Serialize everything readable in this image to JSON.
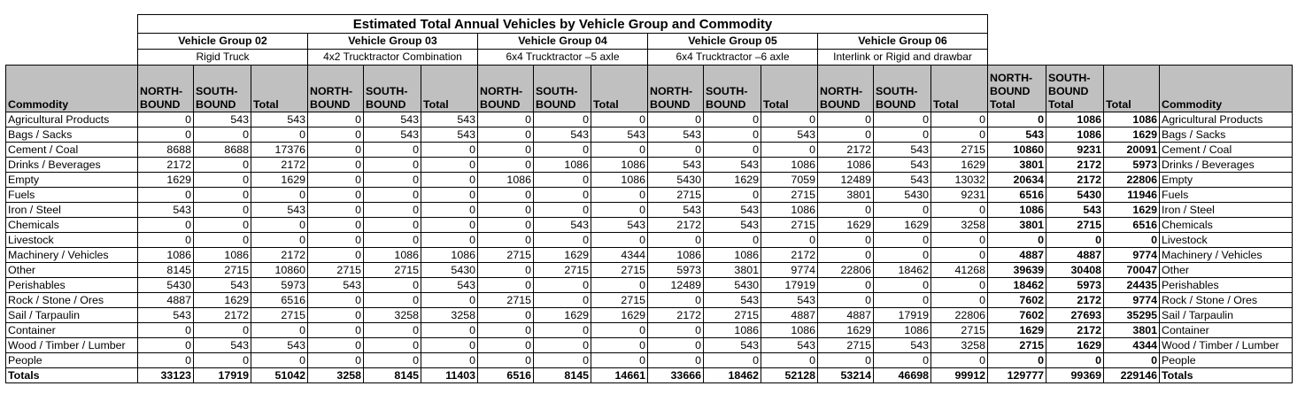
{
  "title": "Estimated Total Annual Vehicles by Vehicle Group and Commodity",
  "vehicle_groups": [
    {
      "name": "Vehicle Group 02",
      "type": "Rigid Truck"
    },
    {
      "name": "Vehicle Group 03",
      "type": "4x2 Trucktractor Combination"
    },
    {
      "name": "Vehicle Group 04",
      "type": "6x4 Trucktractor –5 axle"
    },
    {
      "name": "Vehicle Group 05",
      "type": "6x4 Trucktractor –6 axle"
    },
    {
      "name": "Vehicle Group 06",
      "type": "Interlink or Rigid and drawbar"
    }
  ],
  "headers": {
    "commodity": "Commodity",
    "north": "NORTH-\nBOUND",
    "south": "SOUTH-\nBOUND",
    "total": "Total",
    "north_total": "NORTH-\nBOUND\nTotal",
    "south_total": "SOUTH-\nBOUND\nTotal",
    "grand_total": "Total",
    "commodity_right": "Commodity"
  },
  "rows": [
    {
      "commodity": "Agricultural Products",
      "values": [
        "0",
        "543",
        "543",
        "0",
        "543",
        "543",
        "0",
        "0",
        "0",
        "0",
        "0",
        "0",
        "0",
        "0",
        "0",
        "0",
        "1086",
        "1086"
      ]
    },
    {
      "commodity": "Bags / Sacks",
      "values": [
        "0",
        "0",
        "0",
        "0",
        "543",
        "543",
        "0",
        "543",
        "543",
        "543",
        "0",
        "543",
        "0",
        "0",
        "0",
        "543",
        "1086",
        "1629"
      ]
    },
    {
      "commodity": "Cement / Coal",
      "values": [
        "8688",
        "8688",
        "17376",
        "0",
        "0",
        "0",
        "0",
        "0",
        "0",
        "0",
        "0",
        "0",
        "2172",
        "543",
        "2715",
        "10860",
        "9231",
        "20091"
      ]
    },
    {
      "commodity": "Drinks / Beverages",
      "values": [
        "2172",
        "0",
        "2172",
        "0",
        "0",
        "0",
        "0",
        "1086",
        "1086",
        "543",
        "543",
        "1086",
        "1086",
        "543",
        "1629",
        "3801",
        "2172",
        "5973"
      ]
    },
    {
      "commodity": "Empty",
      "values": [
        "1629",
        "0",
        "1629",
        "0",
        "0",
        "0",
        "1086",
        "0",
        "1086",
        "5430",
        "1629",
        "7059",
        "12489",
        "543",
        "13032",
        "20634",
        "2172",
        "22806"
      ]
    },
    {
      "commodity": "Fuels",
      "values": [
        "0",
        "0",
        "0",
        "0",
        "0",
        "0",
        "0",
        "0",
        "0",
        "2715",
        "0",
        "2715",
        "3801",
        "5430",
        "9231",
        "6516",
        "5430",
        "11946"
      ]
    },
    {
      "commodity": "Iron / Steel",
      "values": [
        "543",
        "0",
        "543",
        "0",
        "0",
        "0",
        "0",
        "0",
        "0",
        "543",
        "543",
        "1086",
        "0",
        "0",
        "0",
        "1086",
        "543",
        "1629"
      ]
    },
    {
      "commodity": "Chemicals",
      "values": [
        "0",
        "0",
        "0",
        "0",
        "0",
        "0",
        "0",
        "543",
        "543",
        "2172",
        "543",
        "2715",
        "1629",
        "1629",
        "3258",
        "3801",
        "2715",
        "6516"
      ]
    },
    {
      "commodity": "Livestock",
      "values": [
        "0",
        "0",
        "0",
        "0",
        "0",
        "0",
        "0",
        "0",
        "0",
        "0",
        "0",
        "0",
        "0",
        "0",
        "0",
        "0",
        "0",
        "0"
      ]
    },
    {
      "commodity": "Machinery / Vehicles",
      "values": [
        "1086",
        "1086",
        "2172",
        "0",
        "1086",
        "1086",
        "2715",
        "1629",
        "4344",
        "1086",
        "1086",
        "2172",
        "0",
        "0",
        "0",
        "4887",
        "4887",
        "9774"
      ]
    },
    {
      "commodity": "Other",
      "values": [
        "8145",
        "2715",
        "10860",
        "2715",
        "2715",
        "5430",
        "0",
        "2715",
        "2715",
        "5973",
        "3801",
        "9774",
        "22806",
        "18462",
        "41268",
        "39639",
        "30408",
        "70047"
      ]
    },
    {
      "commodity": "Perishables",
      "values": [
        "5430",
        "543",
        "5973",
        "543",
        "0",
        "543",
        "0",
        "0",
        "0",
        "12489",
        "5430",
        "17919",
        "0",
        "0",
        "0",
        "18462",
        "5973",
        "24435"
      ]
    },
    {
      "commodity": "Rock / Stone / Ores",
      "values": [
        "4887",
        "1629",
        "6516",
        "0",
        "0",
        "0",
        "2715",
        "0",
        "2715",
        "0",
        "543",
        "543",
        "0",
        "0",
        "0",
        "7602",
        "2172",
        "9774"
      ]
    },
    {
      "commodity": "Sail / Tarpaulin",
      "values": [
        "543",
        "2172",
        "2715",
        "0",
        "3258",
        "3258",
        "0",
        "1629",
        "1629",
        "2172",
        "2715",
        "4887",
        "4887",
        "17919",
        "22806",
        "7602",
        "27693",
        "35295"
      ]
    },
    {
      "commodity": "Container",
      "values": [
        "0",
        "0",
        "0",
        "0",
        "0",
        "0",
        "0",
        "0",
        "0",
        "0",
        "1086",
        "1086",
        "1629",
        "1086",
        "2715",
        "1629",
        "2172",
        "3801"
      ]
    },
    {
      "commodity": "Wood / Timber / Lumber",
      "values": [
        "0",
        "543",
        "543",
        "0",
        "0",
        "0",
        "0",
        "0",
        "0",
        "0",
        "543",
        "543",
        "2715",
        "543",
        "3258",
        "2715",
        "1629",
        "4344"
      ]
    },
    {
      "commodity": "People",
      "values": [
        "0",
        "0",
        "0",
        "0",
        "0",
        "0",
        "0",
        "0",
        "0",
        "0",
        "0",
        "0",
        "0",
        "0",
        "0",
        "0",
        "0",
        "0"
      ]
    }
  ],
  "totals": {
    "label": "Totals",
    "values": [
      "33123",
      "17919",
      "51042",
      "3258",
      "8145",
      "11403",
      "6516",
      "8145",
      "14661",
      "33666",
      "18462",
      "52128",
      "53214",
      "46698",
      "99912",
      "129777",
      "99369",
      "229146"
    ]
  }
}
